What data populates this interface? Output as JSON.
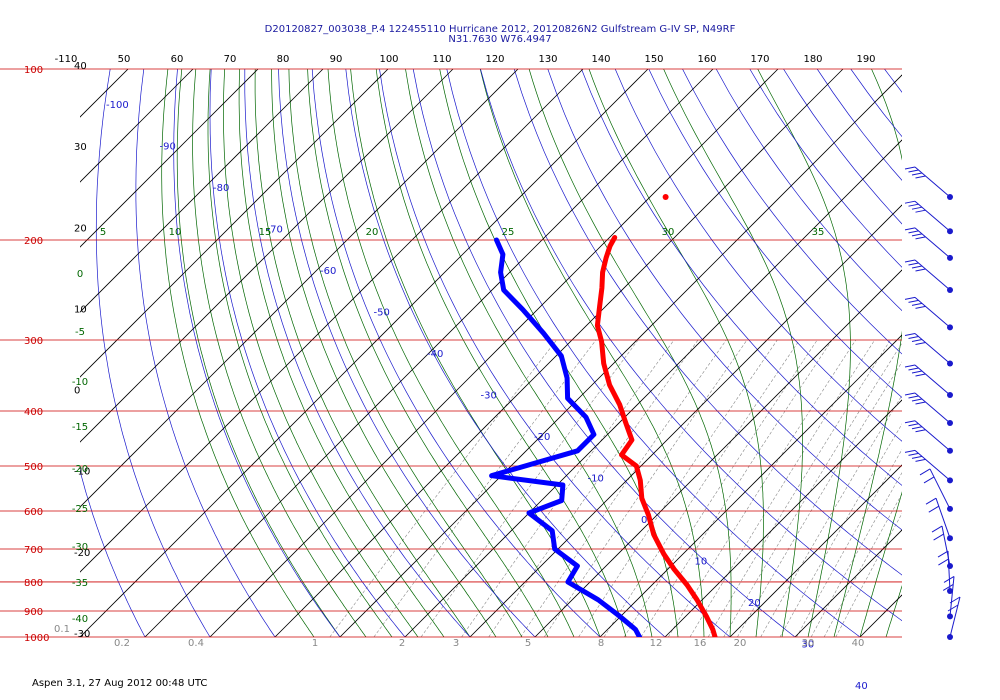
{
  "header": {
    "line1": "D20120827_003038_P.4 122455110 Hurricane 2012, 20120826N2 Gulfstream G-IV SP, N49RF",
    "line2": "N31.7630 W76.4947"
  },
  "footer": {
    "text": "Aspen 3.1, 27 Aug 2012  00:48 UTC"
  },
  "colors": {
    "isobar": "#cc0000",
    "isotherm": "#000000",
    "dry_adiabat": "#1a1acc",
    "moist_adiabat": "#006600",
    "mixing_ratio": "#888888",
    "temperature": "#ff0000",
    "dewpoint": "#0000ff",
    "barbs": "#1a1acc"
  },
  "chart_data": {
    "type": "line",
    "title": "D20120827_003038_P.4 122455110 Hurricane 2012, 20120826N2 Gulfstream G-IV SP, N49RF",
    "y_axis": {
      "quantity": "pressure (hPa)",
      "scale": "log",
      "range": [
        1000,
        100
      ],
      "ticks": [
        {
          "p": 100,
          "label": "100"
        },
        {
          "p": 200,
          "label": "200"
        },
        {
          "p": 300,
          "label": "300"
        },
        {
          "p": 400,
          "label": "400"
        },
        {
          "p": 500,
          "label": "500"
        },
        {
          "p": 600,
          "label": "600"
        },
        {
          "p": 700,
          "label": "700"
        },
        {
          "p": 800,
          "label": "800"
        },
        {
          "p": 900,
          "label": "900"
        },
        {
          "p": 1000,
          "label": "1000"
        }
      ]
    },
    "top_labels": [
      "-110",
      "50",
      "60",
      "70",
      "80",
      "90",
      "100",
      "110",
      "120",
      "130",
      "140",
      "150",
      "160",
      "170",
      "180",
      "190"
    ],
    "isotherm_labels": [
      {
        "t": 40,
        "label": "40"
      },
      {
        "t": 30,
        "label": "30"
      },
      {
        "t": 20,
        "label": "20"
      },
      {
        "t": 10,
        "label": "10"
      },
      {
        "t": 0,
        "label": "0"
      },
      {
        "t": -10,
        "label": "-10"
      },
      {
        "t": -20,
        "label": "-20"
      },
      {
        "t": -30,
        "label": "-30"
      }
    ],
    "dry_adiabat_labels": [
      "-100",
      "-90",
      "-80",
      "-70",
      "-60",
      "-50",
      "-40",
      "-30",
      "-20",
      "-10",
      "0",
      "10",
      "20",
      "30",
      "40"
    ],
    "moist_adiabat_labels": [
      "5",
      "10",
      "15",
      "20",
      "25",
      "30",
      "35"
    ],
    "theta_e_labels": [
      "0",
      "-5",
      "-10",
      "-15",
      "-20",
      "-25",
      "-30",
      "-35",
      "-40"
    ],
    "mixing_ratio_labels": [
      "0.1",
      "0.2",
      "0.4",
      "1",
      "2",
      "3",
      "5",
      "8",
      "12",
      "16",
      "20",
      "30",
      "40"
    ],
    "grid": true,
    "series": [
      {
        "name": "Temperature",
        "color": "#ff0000",
        "points": [
          {
            "p": 198.0,
            "t": -59.2
          },
          {
            "p": 205.0,
            "t": -58.6
          },
          {
            "p": 215.0,
            "t": -57.4
          },
          {
            "p": 228.0,
            "t": -55.7
          },
          {
            "p": 243.0,
            "t": -53.4
          },
          {
            "p": 262.0,
            "t": -50.9
          },
          {
            "p": 283.0,
            "t": -48.3
          },
          {
            "p": 302.0,
            "t": -45.2
          },
          {
            "p": 330.0,
            "t": -41.5
          },
          {
            "p": 360.0,
            "t": -37.3
          },
          {
            "p": 390.0,
            "t": -32.7
          },
          {
            "p": 418.0,
            "t": -29.2
          },
          {
            "p": 450.0,
            "t": -25.4
          },
          {
            "p": 478.0,
            "t": -24.7
          },
          {
            "p": 500.0,
            "t": -20.7
          },
          {
            "p": 530.0,
            "t": -17.9
          },
          {
            "p": 570.0,
            "t": -14.9
          },
          {
            "p": 610.0,
            "t": -11.3
          },
          {
            "p": 660.0,
            "t": -7.5
          },
          {
            "p": 715.0,
            "t": -2.9
          },
          {
            "p": 760.0,
            "t": 1.0
          },
          {
            "p": 810.0,
            "t": 5.4
          },
          {
            "p": 860.0,
            "t": 9.2
          },
          {
            "p": 920.0,
            "t": 13.2
          },
          {
            "p": 970.0,
            "t": 16.2
          },
          {
            "p": 1002.0,
            "t": 17.8
          }
        ]
      },
      {
        "name": "Dewpoint",
        "color": "#0000ff",
        "points": [
          {
            "p": 200.0,
            "t": -77.0
          },
          {
            "p": 212.0,
            "t": -73.8
          },
          {
            "p": 228.0,
            "t": -71.4
          },
          {
            "p": 245.0,
            "t": -68.2
          },
          {
            "p": 265.0,
            "t": -62.3
          },
          {
            "p": 292.0,
            "t": -55.4
          },
          {
            "p": 320.0,
            "t": -49.2
          },
          {
            "p": 350.0,
            "t": -44.9
          },
          {
            "p": 380.0,
            "t": -41.7
          },
          {
            "p": 410.0,
            "t": -36.0
          },
          {
            "p": 440.0,
            "t": -32.1
          },
          {
            "p": 470.0,
            "t": -32.1
          },
          {
            "p": 520.0,
            "t": -41.5
          },
          {
            "p": 540.0,
            "t": -29.1
          },
          {
            "p": 575.0,
            "t": -26.9
          },
          {
            "p": 605.0,
            "t": -30.0
          },
          {
            "p": 650.0,
            "t": -23.7
          },
          {
            "p": 700.0,
            "t": -20.5
          },
          {
            "p": 750.0,
            "t": -14.4
          },
          {
            "p": 800.0,
            "t": -13.4
          },
          {
            "p": 860.0,
            "t": -6.0
          },
          {
            "p": 920.0,
            "t": -0.1
          },
          {
            "p": 970.0,
            "t": 4.3
          },
          {
            "p": 1002.0,
            "t": 6.2
          }
        ]
      }
    ],
    "temperature_isolated_point": {
      "p": 168.0,
      "t": -57.6
    },
    "wind_barbs": [
      {
        "p": 168
      },
      {
        "p": 193
      },
      {
        "p": 215
      },
      {
        "p": 245
      },
      {
        "p": 285
      },
      {
        "p": 330
      },
      {
        "p": 375
      },
      {
        "p": 420
      },
      {
        "p": 470
      },
      {
        "p": 530
      },
      {
        "p": 595
      },
      {
        "p": 670
      },
      {
        "p": 750
      },
      {
        "p": 830
      },
      {
        "p": 920
      },
      {
        "p": 1000
      }
    ]
  }
}
